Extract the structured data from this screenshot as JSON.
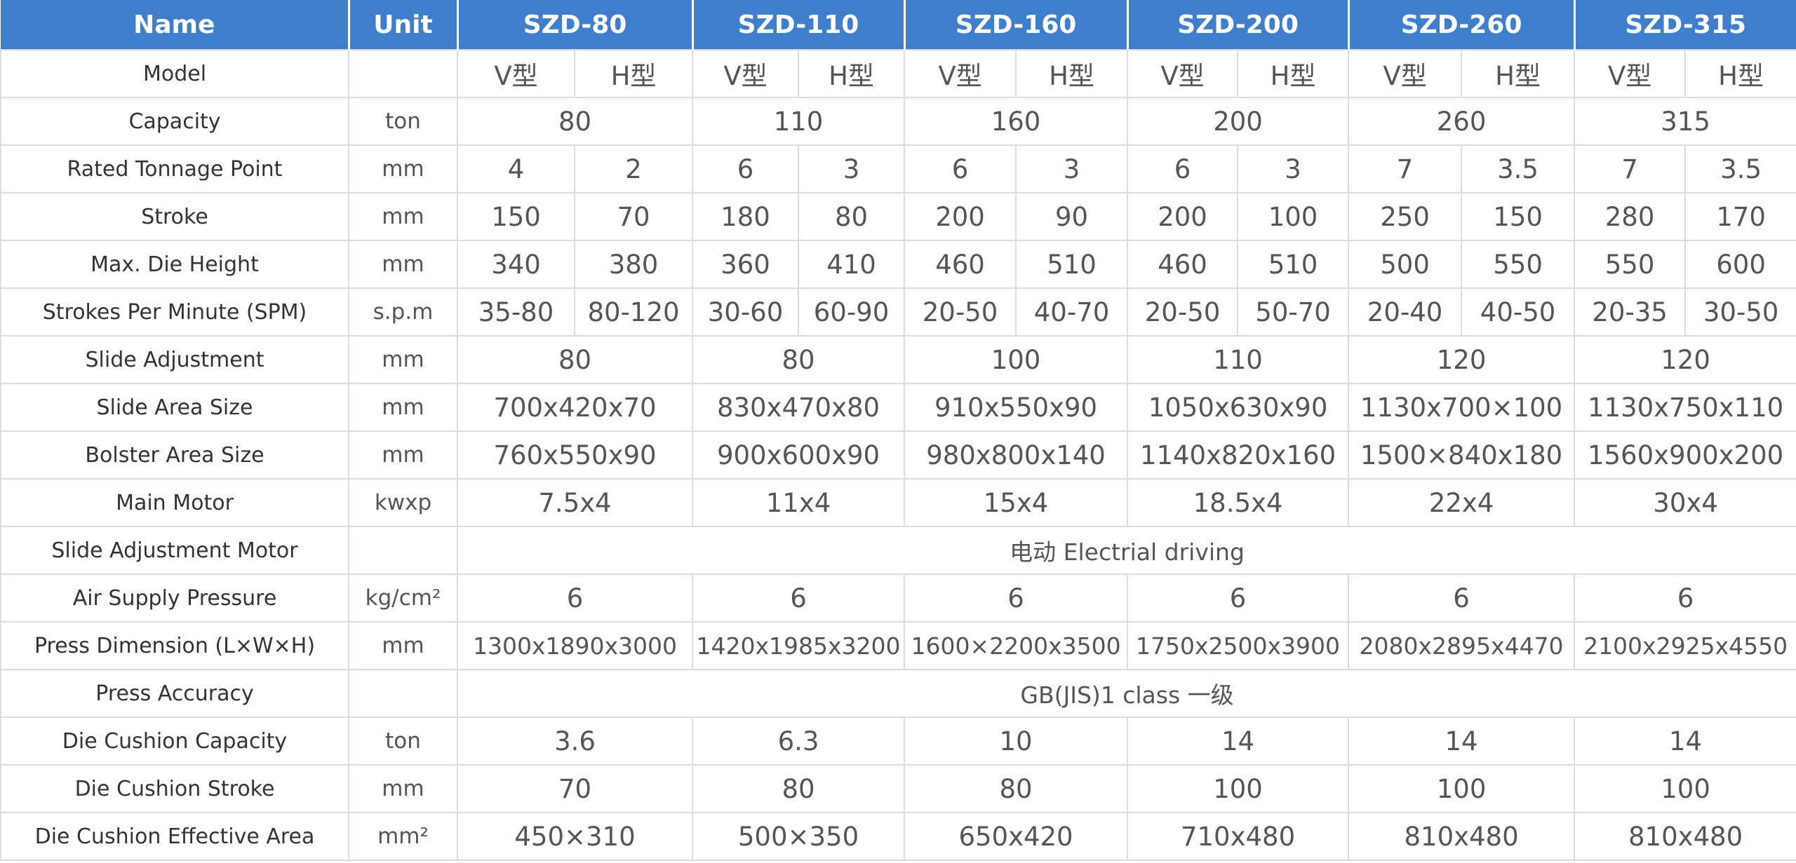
{
  "header": {
    "name": "Name",
    "unit": "Unit",
    "models": [
      "SZD-80",
      "SZD-110",
      "SZD-160",
      "SZD-200",
      "SZD-260",
      "SZD-315"
    ]
  },
  "rows": [
    {
      "label": "Model",
      "unit": null,
      "cells": [
        "V型",
        "H型",
        "V型",
        "H型",
        "V型",
        "H型",
        "V型",
        "H型",
        "V型",
        "H型",
        "V型",
        "H型"
      ]
    },
    {
      "label": "Capacity",
      "unit": "ton",
      "cells": [
        "80",
        "110",
        "160",
        "200",
        "260",
        "315"
      ]
    },
    {
      "label": "Rated Tonnage Point",
      "unit": "mm",
      "cells": [
        "4",
        "2",
        "6",
        "3",
        "6",
        "3",
        "6",
        "3",
        "7",
        "3.5",
        "7",
        "3.5"
      ]
    },
    {
      "label": "Stroke",
      "unit": "mm",
      "cells": [
        "150",
        "70",
        "180",
        "80",
        "200",
        "90",
        "200",
        "100",
        "250",
        "150",
        "280",
        "170"
      ]
    },
    {
      "label": "Max. Die Height",
      "unit": "mm",
      "cells": [
        "340",
        "380",
        "360",
        "410",
        "460",
        "510",
        "460",
        "510",
        "500",
        "550",
        "550",
        "600"
      ]
    },
    {
      "label": "Strokes Per Minute (SPM)",
      "unit": "s.p.m",
      "cells": [
        "35-80",
        "80-120",
        "30-60",
        "60-90",
        "20-50",
        "40-70",
        "20-50",
        "50-70",
        "20-40",
        "40-50",
        "20-35",
        "30-50"
      ]
    },
    {
      "label": "Slide Adjustment",
      "unit": "mm",
      "cells": [
        "80",
        "80",
        "100",
        "110",
        "120",
        "120"
      ]
    },
    {
      "label": "Slide Area Size",
      "unit": "mm",
      "cells": [
        "700x420x70",
        "830x470x80",
        "910x550x90",
        "1050x630x90",
        "1130x700×100",
        "1130x750x110"
      ]
    },
    {
      "label": "Bolster Area Size",
      "unit": "mm",
      "cells": [
        "760x550x90",
        "900x600x90",
        "980x800x140",
        "1140x820x160",
        "1500×840x180",
        "1560x900x200"
      ]
    },
    {
      "label": "Main Motor",
      "unit": "kwxp",
      "cells": [
        "7.5x4",
        "11x4",
        "15x4",
        "18.5x4",
        "22x4",
        "30x4"
      ]
    },
    {
      "label": "Slide Adjustment Motor",
      "unit": null,
      "cells": [
        "电动 Electrial driving"
      ]
    },
    {
      "label": "Air Supply Pressure",
      "unit": "kg/cm²",
      "cells": [
        "6",
        "6",
        "6",
        "6",
        "6",
        "6"
      ]
    },
    {
      "label": "Press Dimension (L×W×H)",
      "unit": "mm",
      "cells": [
        "1300x1890x3000",
        "1420x1985x3200",
        "1600×2200x3500",
        "1750x2500x3900",
        "2080x2895x4470",
        "2100x2925x4550"
      ]
    },
    {
      "label": "Press Accuracy",
      "unit": null,
      "cells": [
        "GB(JIS)1 class 一级"
      ]
    },
    {
      "label": "Die Cushion Capacity",
      "unit": "ton",
      "cells": [
        "3.6",
        "6.3",
        "10",
        "14",
        "14",
        "14"
      ]
    },
    {
      "label": "Die Cushion Stroke",
      "unit": "mm",
      "cells": [
        "70",
        "80",
        "80",
        "100",
        "100",
        "100"
      ]
    },
    {
      "label": "Die Cushion Effective Area",
      "unit": "mm²",
      "cells": [
        "450×310",
        "500×350",
        "650x420",
        "710x480",
        "810x480",
        "810x480"
      ]
    }
  ]
}
